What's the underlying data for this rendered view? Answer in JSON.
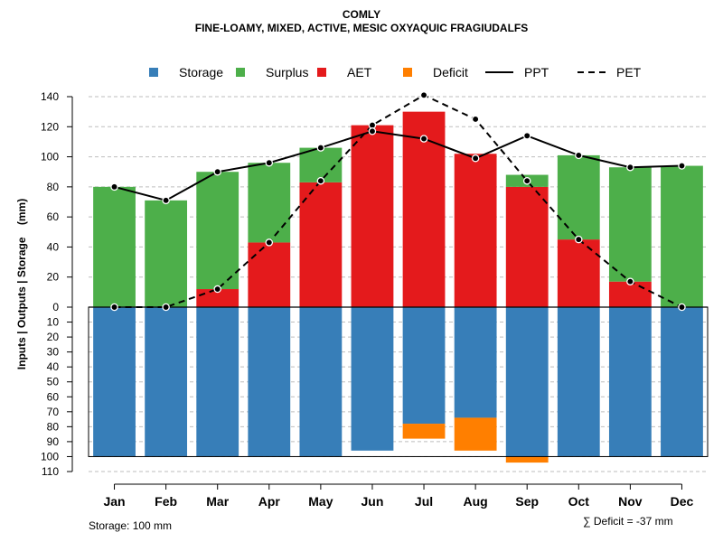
{
  "title": "COMLY",
  "subtitle": "FINE-LOAMY, MIXED, ACTIVE, MESIC OXYAQUIC FRAGIUDALFS",
  "storage_note": "Storage: 100 mm",
  "deficit_note": "∑ Deficit = -37 mm",
  "colors": {
    "storage": "#377eb8",
    "surplus": "#4daf4a",
    "aet": "#e41a1c",
    "deficit": "#ff7f00",
    "line": "#000000",
    "grid": "#bebebe"
  },
  "chart_data": {
    "type": "bar",
    "ylabel": "Inputs | Outputs | Storage    (mm)",
    "categories": [
      "Jan",
      "Feb",
      "Mar",
      "Apr",
      "May",
      "Jun",
      "Jul",
      "Aug",
      "Sep",
      "Oct",
      "Nov",
      "Dec"
    ],
    "upper_ylim": [
      0,
      140
    ],
    "upper_ticks": [
      0,
      20,
      40,
      60,
      80,
      100,
      120,
      140
    ],
    "lower_ylim": [
      0,
      110
    ],
    "lower_ticks": [
      0,
      10,
      20,
      30,
      40,
      50,
      60,
      70,
      80,
      90,
      100,
      110
    ],
    "legend": [
      {
        "label": "Storage",
        "kind": "box",
        "color_key": "storage"
      },
      {
        "label": "Surplus",
        "kind": "box",
        "color_key": "surplus"
      },
      {
        "label": "AET",
        "kind": "box",
        "color_key": "aet"
      },
      {
        "label": "Deficit",
        "kind": "box",
        "color_key": "deficit"
      },
      {
        "label": "PPT",
        "kind": "solid"
      },
      {
        "label": "PET",
        "kind": "dashed"
      }
    ],
    "series": {
      "AET": [
        0,
        0,
        12,
        43,
        83,
        121,
        130,
        102,
        80,
        45,
        17,
        0
      ],
      "Surplus": [
        80,
        71,
        78,
        53,
        23,
        0,
        0,
        0,
        8,
        56,
        76,
        94
      ],
      "Storage": [
        100,
        100,
        100,
        100,
        100,
        96,
        78,
        74,
        100,
        100,
        100,
        100
      ],
      "Deficit": [
        0,
        0,
        0,
        0,
        0,
        0,
        10,
        22,
        4,
        0,
        0,
        0
      ],
      "PPT": [
        80,
        71,
        90,
        96,
        106,
        117,
        112,
        99,
        114,
        101,
        93,
        94
      ],
      "PET": [
        0,
        0,
        12,
        43,
        84,
        121,
        141,
        125,
        84,
        45,
        17,
        0
      ]
    }
  }
}
